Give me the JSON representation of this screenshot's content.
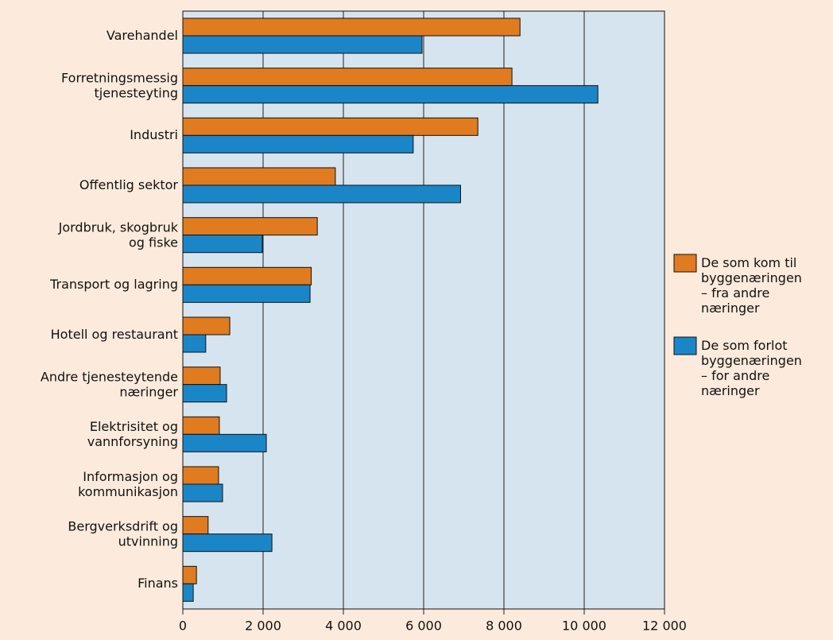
{
  "chart_data": {
    "type": "hbar",
    "categories": [
      "Varehandel",
      "Forretningsmessig\ntjenesteyting",
      "Industri",
      "Offentlig sektor",
      "Jordbruk, skogbruk\nog fiske",
      "Transport og lagring",
      "Hotell og restaurant",
      "Andre tjenesteytende\nnæringer",
      "Elektrisitet og\nvannforsyning",
      "Informasjon og\nkommunikasjon",
      "Bergverksdrift og\nutvinning",
      "Finans"
    ],
    "series": [
      {
        "name": "De som kom til\nbyggenæringen\n– fra andre\nnæringer",
        "color": "#e07b1f",
        "values": [
          8400,
          8200,
          7350,
          3800,
          3350,
          3200,
          1170,
          930,
          910,
          890,
          630,
          340
        ]
      },
      {
        "name": "De som forlot\nbyggenæringen\n– for andre\nnæringer",
        "color": "#1a86c8",
        "values": [
          5960,
          10340,
          5740,
          6920,
          1980,
          3170,
          570,
          1090,
          2080,
          990,
          2220,
          260
        ]
      }
    ],
    "xlim": [
      0,
      12000
    ],
    "xticks": [
      0,
      {
        "value": 2000,
        "label": "2 000"
      },
      {
        "value": 4000,
        "label": "4 000"
      },
      {
        "value": 6000,
        "label": "6 000"
      },
      {
        "value": 8000,
        "label": "8 000"
      },
      {
        "value": 10000,
        "label": "10 000"
      },
      {
        "value": 12000,
        "label": "12 000"
      }
    ],
    "grid": true,
    "legend": "right",
    "plot_background": "#d6e4ef"
  }
}
